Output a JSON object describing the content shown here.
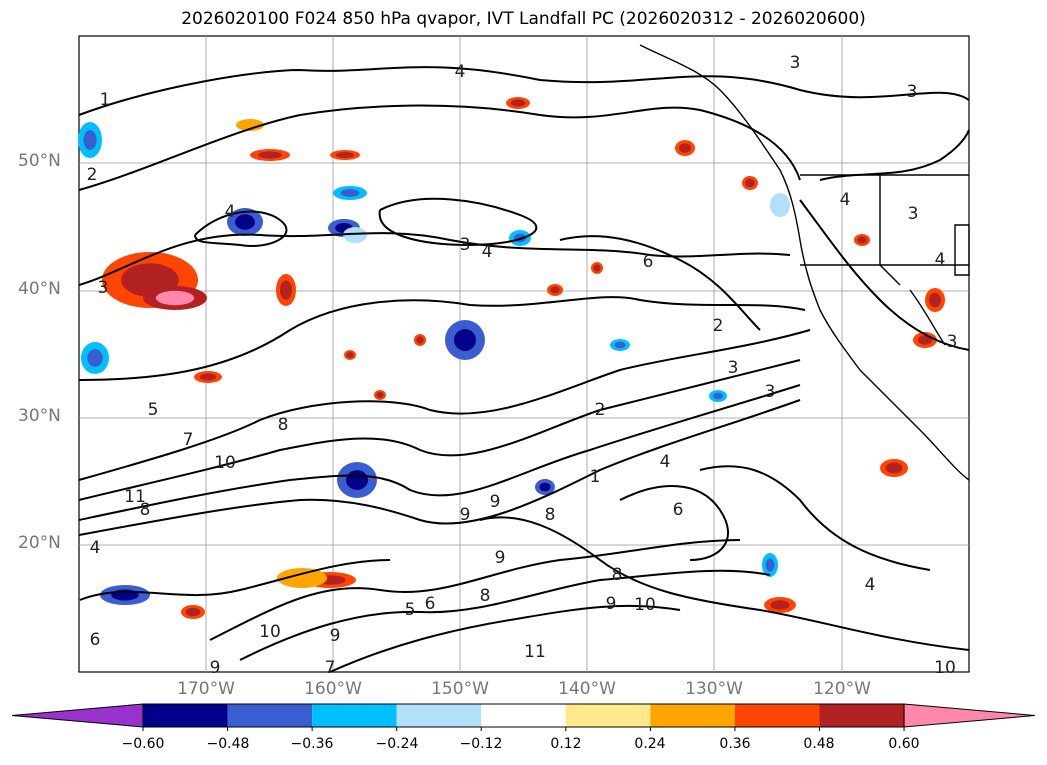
{
  "title": "2026020100 F024 850 hPa qvapor, IVT Landfall PC (2026020312 - 2026020600)",
  "latitude_labels": [
    "50°N",
    "40°N",
    "30°N",
    "20°N"
  ],
  "longitude_labels": [
    "170°W",
    "160°W",
    "150°W",
    "140°W",
    "130°W",
    "120°W"
  ],
  "colorbar": {
    "tick_labels": [
      "−0.60",
      "−0.48",
      "−0.36",
      "−0.24",
      "−0.12",
      "0.12",
      "0.24",
      "0.36",
      "0.48",
      "0.60"
    ],
    "colors": [
      "#9932cc",
      "#00008b",
      "#3a5ed0",
      "#00bfff",
      "#b0e0fa",
      "#ffffff",
      "#ffe98a",
      "#ffa500",
      "#ff4500",
      "#b22222",
      "#ff88aa"
    ]
  },
  "contour_labels": [
    "1",
    "2",
    "3",
    "4",
    "5",
    "6",
    "7",
    "8",
    "9",
    "10",
    "11"
  ],
  "colors": {
    "coastline": "#000000",
    "gridline": "#999999",
    "axis_label": "#777777"
  }
}
